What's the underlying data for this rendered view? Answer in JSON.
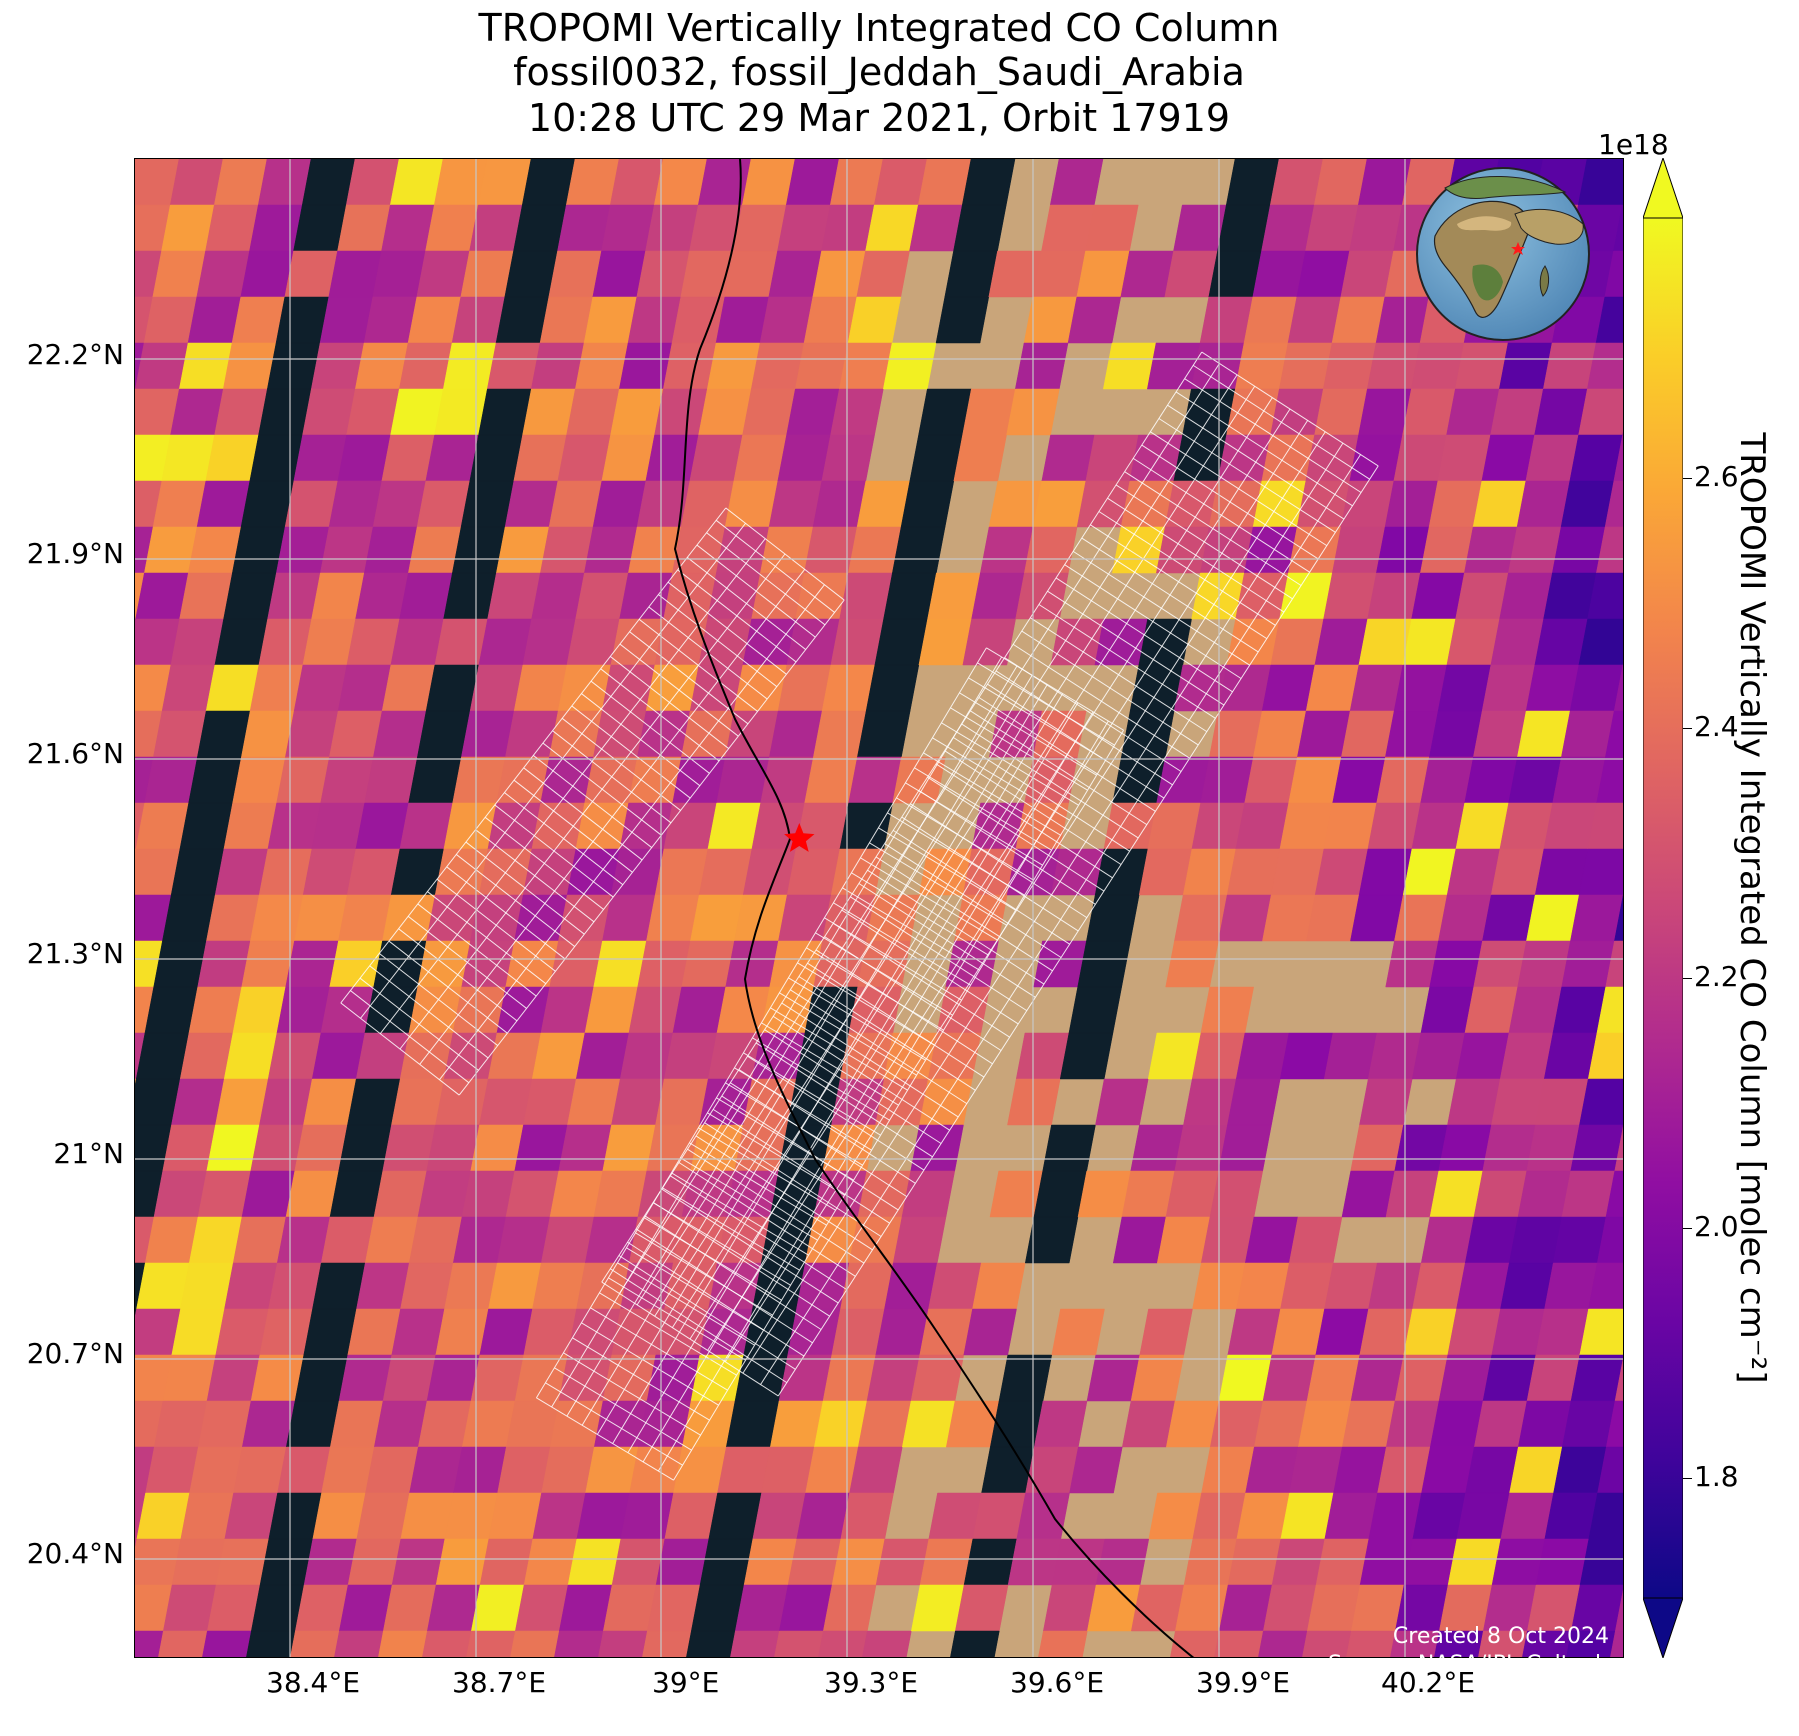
{
  "title": {
    "line1": "TROPOMI Vertically Integrated CO Column",
    "line2": "fossil0032, fossil_Jeddah_Saudi_Arabia",
    "line3": "10:28 UTC 29 Mar 2021, Orbit 17919"
  },
  "map": {
    "lat_ticks": [
      "22.2°N",
      "21.9°N",
      "21.6°N",
      "21.3°N",
      "21°N",
      "20.7°N",
      "20.4°N"
    ],
    "lon_ticks": [
      "38.4°E",
      "38.7°E",
      "39°E",
      "39.3°E",
      "39.6°E",
      "39.9°E",
      "40.2°E"
    ],
    "extent": {
      "lon_min": 38.1,
      "lon_max": 40.5,
      "lat_min": 20.25,
      "lat_max": 22.5
    },
    "site": {
      "lon": 39.17,
      "lat": 21.48,
      "marker": "red-star"
    },
    "credits": {
      "created": "Created 8 Oct 2024",
      "source": "Source: NASA/JPL-Caltech"
    }
  },
  "colorbar": {
    "label": "TROPOMI Vertically Integrated CO Column [molec cm⁻²]",
    "exponent": "1e18",
    "ticks": [
      "1.8",
      "2.0",
      "2.2",
      "2.4",
      "2.6"
    ],
    "min": 1.7,
    "max": 2.75,
    "colormap": "plasma",
    "extend": "both"
  },
  "colors": {
    "ocean_dark": "#0e1f2b",
    "desert": "#c9a57a",
    "grid": "#c8c8c8",
    "marker": "#ff0000"
  }
}
